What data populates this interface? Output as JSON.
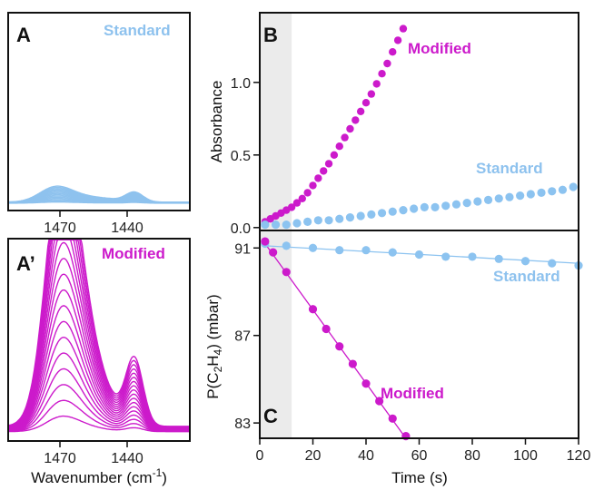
{
  "colors": {
    "standard": "#8ec2ee",
    "standard_dots": "#8cc3f0",
    "modified": "#cc1acb",
    "axis": "#111111",
    "shade": "#ebebeb"
  },
  "chart_data": [
    {
      "panel": "A",
      "type": "line",
      "legend": "Standard",
      "xlabel": "",
      "xticks": [
        "1470",
        "1440"
      ],
      "x_reversed": true,
      "xlim": [
        1486,
        1427
      ],
      "series_count": 14,
      "peaks": [
        {
          "x": 1468,
          "height_final": 0.19
        },
        {
          "x": 1445,
          "height_final": 0.17
        }
      ]
    },
    {
      "panel": "A’",
      "type": "line",
      "legend": "Modified",
      "xlabel": "Wavenumber (cm",
      "xlabel_sup": "-1",
      "xlabel_end": ")",
      "xticks": [
        "1470",
        "1440"
      ],
      "x_reversed": true,
      "xlim": [
        1486,
        1427
      ],
      "series_count": 18,
      "peaks": [
        {
          "x": 1466,
          "height_final": 1.0
        },
        {
          "x": 1445,
          "height_final": 0.35
        }
      ]
    },
    {
      "panel": "B",
      "type": "scatter",
      "ylabel": "Absorbance",
      "xlim": [
        0,
        120
      ],
      "ylim": [
        -0.02,
        1.48
      ],
      "yticks": [
        "0.0",
        "0.5",
        "1.0"
      ],
      "shaded_x": [
        0,
        12
      ],
      "series": [
        {
          "name": "Modified",
          "x": [
            2,
            4,
            6,
            8,
            10,
            12,
            14,
            16,
            18,
            20,
            22,
            24,
            26,
            28,
            30,
            32,
            34,
            36,
            38,
            40,
            42,
            44,
            46,
            48,
            50,
            52,
            54
          ],
          "y": [
            0.04,
            0.06,
            0.08,
            0.1,
            0.12,
            0.14,
            0.17,
            0.2,
            0.24,
            0.29,
            0.34,
            0.39,
            0.44,
            0.5,
            0.56,
            0.62,
            0.68,
            0.74,
            0.8,
            0.86,
            0.92,
            0.99,
            1.06,
            1.13,
            1.21,
            1.29,
            1.37
          ]
        },
        {
          "name": "Standard",
          "x": [
            2,
            6,
            10,
            14,
            18,
            22,
            26,
            30,
            34,
            38,
            42,
            46,
            50,
            54,
            58,
            62,
            66,
            70,
            74,
            78,
            82,
            86,
            90,
            94,
            98,
            102,
            106,
            110,
            114,
            118
          ],
          "y": [
            0.02,
            0.02,
            0.02,
            0.03,
            0.04,
            0.05,
            0.05,
            0.06,
            0.07,
            0.08,
            0.09,
            0.1,
            0.11,
            0.12,
            0.13,
            0.14,
            0.14,
            0.15,
            0.16,
            0.17,
            0.18,
            0.19,
            0.2,
            0.21,
            0.22,
            0.23,
            0.24,
            0.25,
            0.26,
            0.28
          ]
        }
      ]
    },
    {
      "panel": "C",
      "type": "scatter",
      "ylabel_main": "P(C",
      "ylabel_sub1": "2",
      "ylabel_mid": "H",
      "ylabel_sub2": "4",
      "ylabel_end": ") (mbar)",
      "xlabel": "Time (s)",
      "xlim": [
        0,
        120
      ],
      "ylim": [
        82.3,
        91.8
      ],
      "xticks": [
        0,
        20,
        40,
        60,
        80,
        100,
        120
      ],
      "yticks": [
        83,
        87,
        91
      ],
      "shaded_x": [
        0,
        12
      ],
      "series": [
        {
          "name": "Standard",
          "x": [
            2,
            10,
            20,
            30,
            40,
            50,
            60,
            70,
            80,
            90,
            100,
            110,
            120
          ],
          "y": [
            91.2,
            91.1,
            91.0,
            90.9,
            90.9,
            90.8,
            90.7,
            90.6,
            90.6,
            90.5,
            90.4,
            90.3,
            90.2
          ],
          "fit": [
            [
              2,
              91.1
            ],
            [
              120,
              90.3
            ]
          ]
        },
        {
          "name": "Modified",
          "x": [
            2,
            5,
            10,
            20,
            25,
            30,
            35,
            40,
            45,
            50,
            55
          ],
          "y": [
            91.3,
            90.8,
            89.9,
            88.2,
            87.3,
            86.5,
            85.7,
            84.8,
            84.0,
            83.2,
            82.4
          ],
          "fit": [
            [
              2,
              91.2
            ],
            [
              55,
              82.3
            ]
          ]
        }
      ]
    }
  ]
}
